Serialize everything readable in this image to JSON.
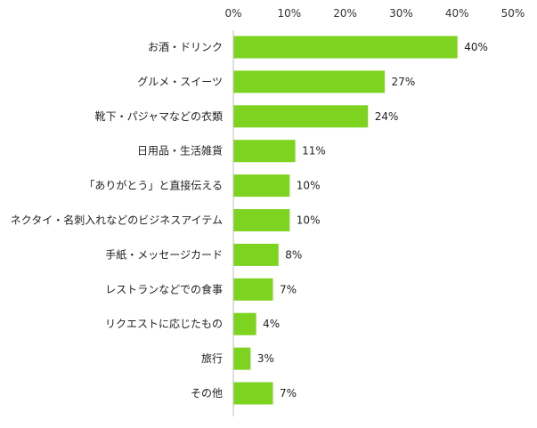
{
  "chart_data": {
    "type": "bar",
    "orientation": "horizontal",
    "categories": [
      "お酒・ドリンク",
      "グルメ・スイーツ",
      "靴下・パジャマなどの衣類",
      "日用品・生活雑貨",
      "「ありがとう」と直接伝える",
      "ネクタイ・名刺入れなどのビジネスアイテム",
      "手紙・メッセージカード",
      "レストランなどでの食事",
      "リクエストに応じたもの",
      "旅行",
      "その他"
    ],
    "values": [
      40,
      27,
      24,
      11,
      10,
      10,
      8,
      7,
      4,
      3,
      7
    ],
    "value_labels": [
      "40%",
      "27%",
      "24%",
      "11%",
      "10%",
      "10%",
      "8%",
      "7%",
      "4%",
      "3%",
      "7%"
    ],
    "xlim": [
      0,
      50
    ],
    "x_ticks": [
      0,
      10,
      20,
      30,
      40,
      50
    ],
    "x_tick_labels": [
      "0%",
      "10%",
      "20%",
      "30%",
      "40%",
      "50%"
    ],
    "axis_position": "top",
    "grid": false,
    "bar_color": "#7ed321",
    "axis_color": "#bfbfbf"
  }
}
